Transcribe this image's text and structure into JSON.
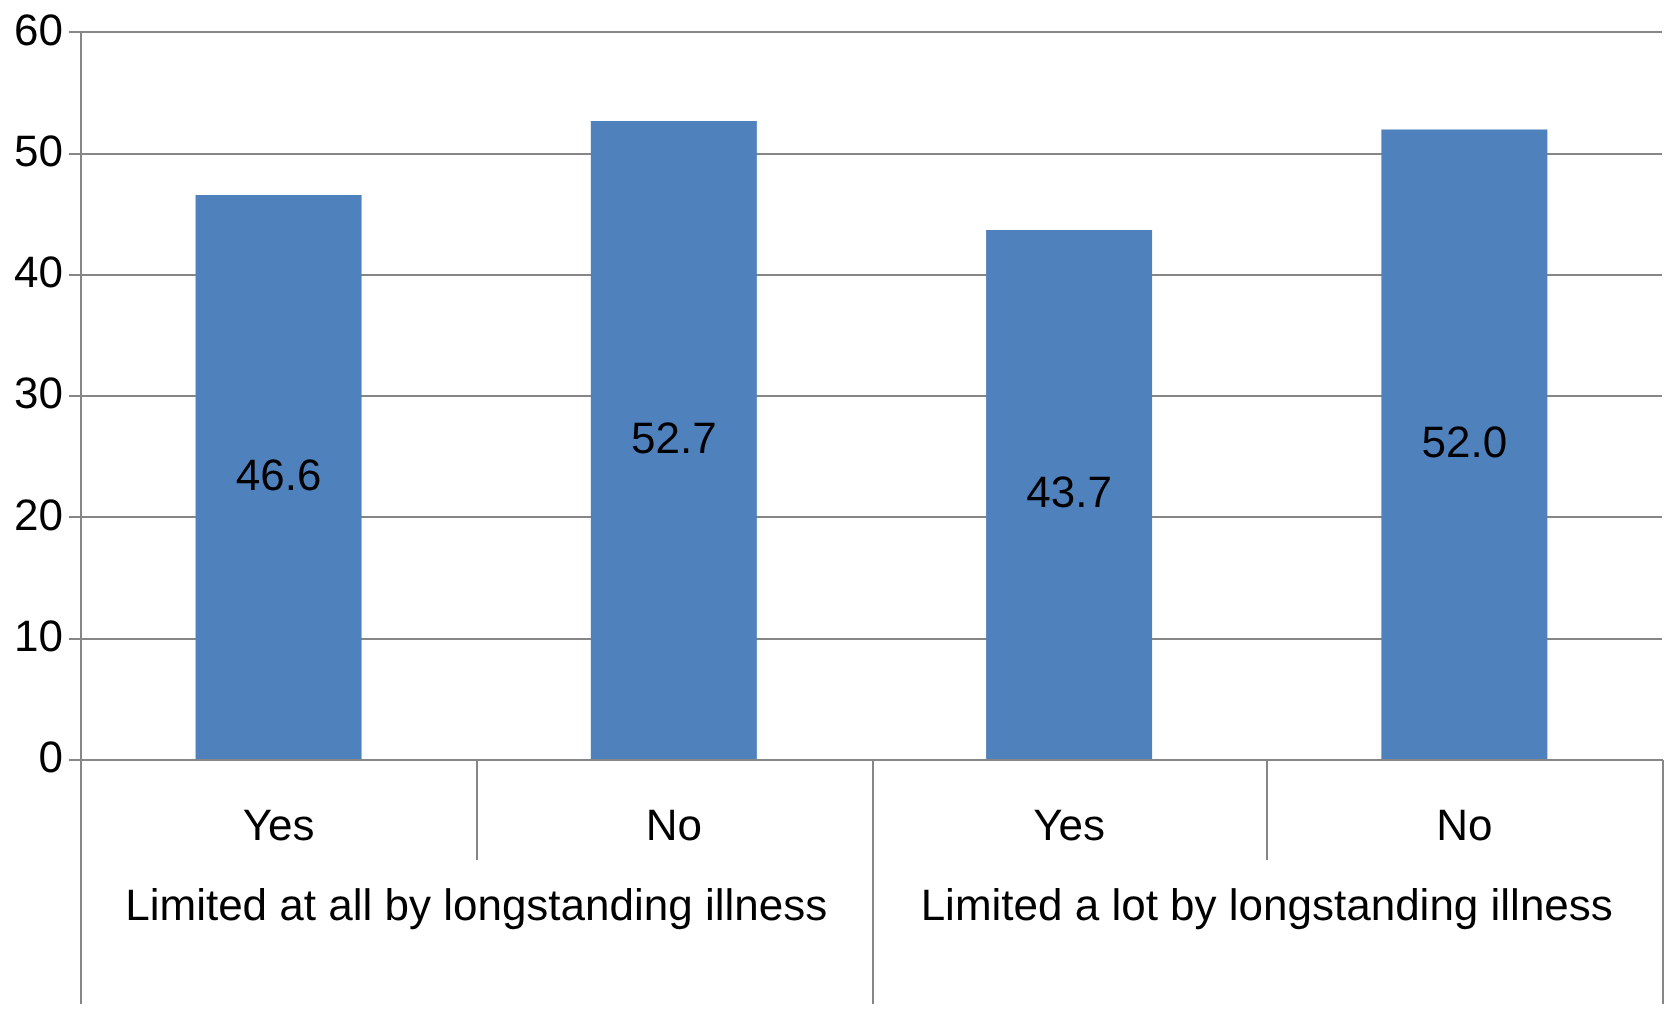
{
  "chart_data": {
    "type": "bar",
    "categories": [
      "Yes",
      "No",
      "Yes",
      "No"
    ],
    "values": [
      46.6,
      52.7,
      43.7,
      52.0
    ],
    "value_labels": [
      "46.6",
      "52.7",
      "43.7",
      "52.0"
    ],
    "color": "#4f81bd",
    "ylim": [
      0,
      60
    ],
    "yticks": [
      0,
      10,
      20,
      30,
      40,
      50,
      60
    ],
    "grid": "y",
    "legend": false,
    "annotations": [
      "Limited at all by longstanding illness",
      "Limited a lot by longstanding illness"
    ]
  }
}
